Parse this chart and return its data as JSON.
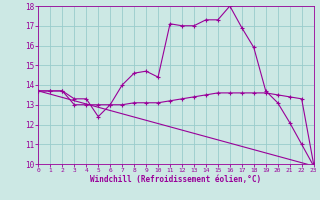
{
  "xlabel": "Windchill (Refroidissement éolien,°C)",
  "xlim": [
    0,
    23
  ],
  "ylim": [
    10,
    18
  ],
  "yticks": [
    10,
    11,
    12,
    13,
    14,
    15,
    16,
    17,
    18
  ],
  "xticks": [
    0,
    1,
    2,
    3,
    4,
    5,
    6,
    7,
    8,
    9,
    10,
    11,
    12,
    13,
    14,
    15,
    16,
    17,
    18,
    19,
    20,
    21,
    22,
    23
  ],
  "bg_color": "#cce8e4",
  "line_color": "#990099",
  "grid_color": "#99cccc",
  "line1_x": [
    0,
    1,
    2,
    3,
    4,
    5,
    6,
    7,
    8,
    9,
    10,
    11,
    12,
    13,
    14,
    15,
    16,
    17,
    18,
    19,
    20,
    21,
    22,
    23
  ],
  "line1_y": [
    13.7,
    13.7,
    13.7,
    13.0,
    13.0,
    13.0,
    13.0,
    13.0,
    13.1,
    13.1,
    13.1,
    13.2,
    13.3,
    13.4,
    13.5,
    13.6,
    13.6,
    13.6,
    13.6,
    13.6,
    13.5,
    13.4,
    13.3,
    10.0
  ],
  "line2_x": [
    0,
    1,
    2,
    3,
    4,
    5,
    6,
    7,
    8,
    9,
    10,
    11,
    12,
    13,
    14,
    15,
    16,
    17,
    18,
    19,
    20,
    21,
    22,
    23
  ],
  "line2_y": [
    13.7,
    13.7,
    13.7,
    13.3,
    13.3,
    12.4,
    13.0,
    14.0,
    14.6,
    14.7,
    14.4,
    17.1,
    17.0,
    17.0,
    17.3,
    17.3,
    18.0,
    16.9,
    15.9,
    13.7,
    13.1,
    12.1,
    11.0,
    9.9
  ],
  "line3_x": [
    0,
    23
  ],
  "line3_y": [
    13.7,
    9.9
  ]
}
